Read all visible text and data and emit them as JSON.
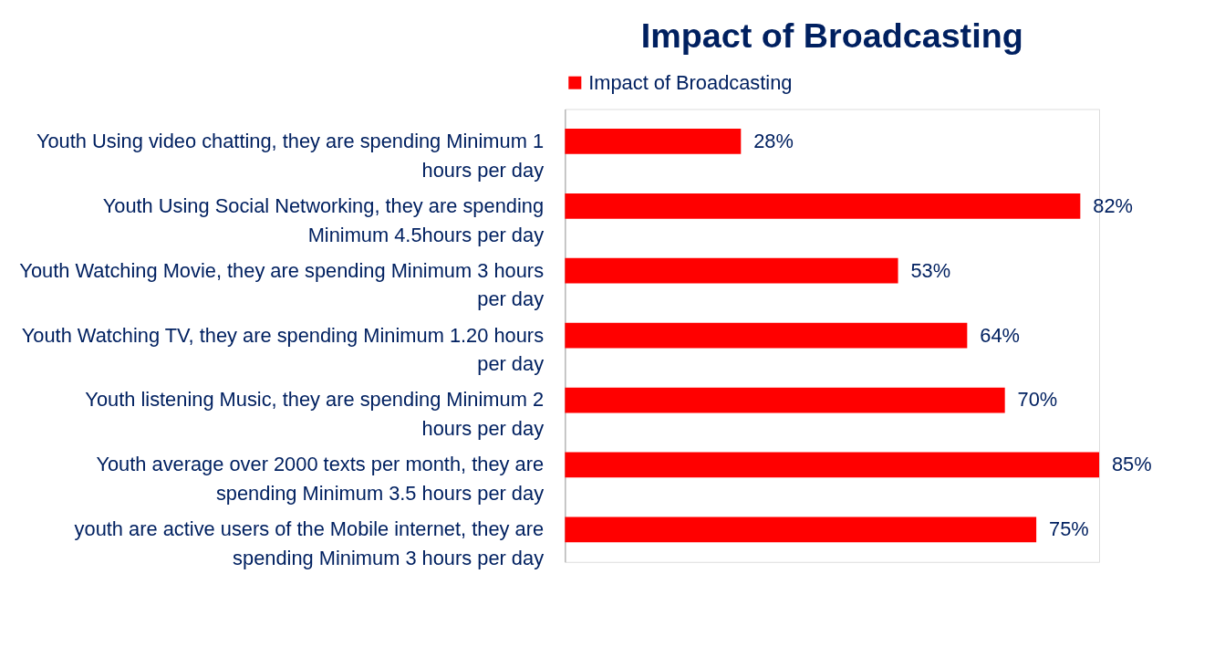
{
  "chart_data": {
    "type": "bar",
    "orientation": "horizontal",
    "title": "Impact of Broadcasting",
    "categories": [
      "Youth Using video chatting, they are spending Minimum 1 hours per day",
      "Youth Using Social Networking, they are spending Minimum 4.5hours per day",
      "Youth Watching Movie, they are spending Minimum 3 hours per day",
      "Youth Watching TV, they are spending Minimum 1.20 hours per day",
      "Youth listening Music, they are spending Minimum 2 hours per day",
      "Youth average over 2000 texts per month, they are spending Minimum 3.5 hours per day",
      "youth are active users of the Mobile internet, they are spending Minimum 3 hours per day"
    ],
    "series": [
      {
        "name": "Impact of Broadcasting",
        "color": "#ff0000",
        "values": [
          28,
          82,
          53,
          64,
          70,
          85,
          75
        ],
        "value_labels": [
          "28%",
          "82%",
          "53%",
          "64%",
          "70%",
          "85%",
          "75%"
        ]
      }
    ],
    "legend": "top",
    "grid": false
  }
}
